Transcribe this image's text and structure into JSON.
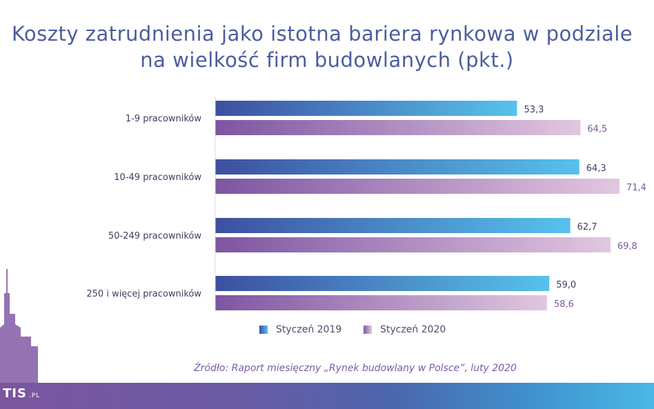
{
  "title_line1": "Koszty zatrudnienia jako istotna bariera rynkowa w podziale",
  "title_line2": "na wielkość firm budowlanych (pkt.)",
  "chart_data": {
    "type": "bar",
    "orientation": "horizontal",
    "title": "Koszty zatrudnienia jako istotna bariera rynkowa w podziale na wielkość firm budowlanych (pkt.)",
    "categories": [
      "1-9 pracowników",
      "10-49 pracowników",
      "50-249 pracowników",
      "250 i więcej pracowników"
    ],
    "series": [
      {
        "name": "Styczeń 2019",
        "values": [
          53.3,
          64.3,
          62.7,
          59.0
        ],
        "labels": [
          "53,3",
          "64,3",
          "62,7",
          "59,0"
        ],
        "color_start": "#3d4fa0",
        "color_end": "#56c2ec",
        "label_color": "#3b3f5c"
      },
      {
        "name": "Styczeń 2020",
        "values": [
          64.5,
          71.4,
          69.8,
          58.6
        ],
        "labels": [
          "64,5",
          "71,4",
          "69,8",
          "58,6"
        ],
        "color_start": "#7d55a1",
        "color_end": "#e2c7e0",
        "label_color": "#7d5a95"
      }
    ],
    "xlim": [
      0,
      71.4
    ],
    "grid": false,
    "legend_position": "bottom-center"
  },
  "legend": {
    "item1": "Styczeń 2019",
    "item2": "Styczeń 2020"
  },
  "source": "Źródło: Raport miesięczny „Rynek budowlany w Polsce”, luty 2020",
  "logo": {
    "text": "TIS",
    "suffix": ".PL"
  },
  "colors": {
    "title": "#4c5d9e",
    "source": "#7b5aa6",
    "footer_start": "#7c559f",
    "footer_end": "#4ab8e6"
  }
}
